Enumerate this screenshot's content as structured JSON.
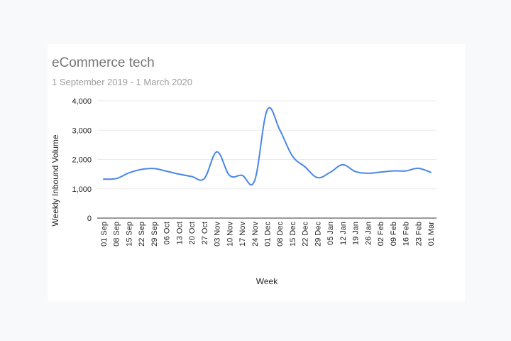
{
  "chart_data": {
    "type": "line",
    "title": "eCommerce tech",
    "subtitle": "1 September 2019 - 1 March 2020",
    "xlabel": "Week",
    "ylabel": "Weekly Inbound Volume",
    "ylim": [
      0,
      4000
    ],
    "yticks": [
      0,
      1000,
      2000,
      3000,
      4000
    ],
    "ytick_labels": [
      "0",
      "1,000",
      "2,000",
      "3,000",
      "4,000"
    ],
    "grid": true,
    "legend": "none",
    "categories": [
      "01 Sep",
      "08 Sep",
      "15 Sep",
      "22 Sep",
      "29 Sep",
      "06 Oct",
      "13 Oct",
      "20 Oct",
      "27 Oct",
      "03 Nov",
      "10 Nov",
      "17 Nov",
      "24 Nov",
      "01 Dec",
      "08 Dec",
      "15 Dec",
      "22 Dec",
      "29 Dec",
      "05 Jan",
      "12 Jan",
      "19 Jan",
      "26 Jan",
      "02 Feb",
      "09 Feb",
      "16 Feb",
      "23 Feb",
      "01 Mar"
    ],
    "series": [
      {
        "color": "#4a86e8",
        "values": [
          1330,
          1350,
          1540,
          1660,
          1690,
          1600,
          1500,
          1420,
          1350,
          2260,
          1460,
          1460,
          1280,
          3690,
          3010,
          2120,
          1750,
          1380,
          1560,
          1820,
          1590,
          1530,
          1570,
          1610,
          1610,
          1700,
          1560
        ]
      }
    ]
  }
}
